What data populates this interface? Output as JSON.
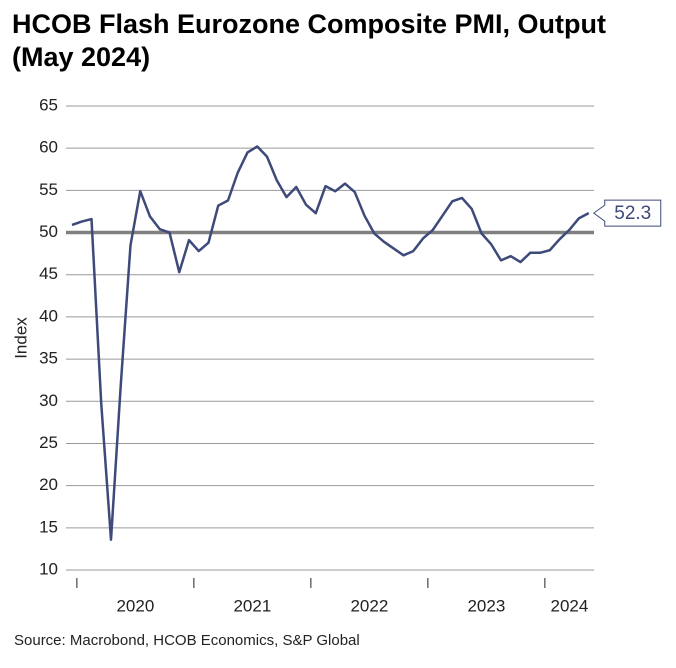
{
  "chart_data": {
    "type": "line",
    "title": "HCOB Flash Eurozone Composite PMI, Output (May 2024)",
    "y_label": "Index",
    "source": "Source: Macrobond, HCOB Economics, S&P Global",
    "categories": [
      null,
      null,
      null,
      null,
      null,
      null,
      null,
      null,
      null,
      null,
      null,
      null,
      null,
      null,
      null,
      null,
      null,
      null,
      null,
      null,
      null,
      null,
      null,
      null,
      null,
      null,
      null,
      null,
      null,
      null,
      null,
      null,
      null,
      null,
      null,
      null,
      null,
      null,
      null,
      null,
      null,
      null,
      null,
      null,
      null,
      null,
      null,
      null,
      null,
      null,
      null,
      null,
      null,
      null
    ],
    "year_labels": [
      "2020",
      "2021",
      "2022",
      "2023",
      "2024"
    ],
    "series": [
      {
        "name": "Composite PMI",
        "color": "#3d4a7a",
        "values": [
          50.9,
          51.3,
          51.6,
          29.7,
          13.6,
          31.9,
          48.5,
          54.9,
          51.9,
          50.4,
          50.0,
          45.3,
          49.1,
          47.8,
          48.8,
          53.2,
          53.8,
          57.1,
          59.5,
          60.2,
          59.0,
          56.2,
          54.2,
          55.4,
          53.3,
          52.3,
          55.5,
          54.9,
          55.8,
          54.8,
          52.0,
          49.9,
          48.9,
          48.1,
          47.3,
          47.8,
          49.3,
          50.3,
          52.0,
          53.7,
          54.1,
          52.8,
          49.9,
          48.6,
          46.7,
          47.2,
          46.5,
          47.6,
          47.6,
          47.9,
          49.2,
          50.3,
          51.7,
          52.3
        ]
      }
    ],
    "reference_line": 50,
    "ylim": [
      10,
      65
    ],
    "yticks": [
      10,
      15,
      20,
      25,
      30,
      35,
      40,
      45,
      50,
      55,
      60,
      65
    ],
    "grid": true
  }
}
